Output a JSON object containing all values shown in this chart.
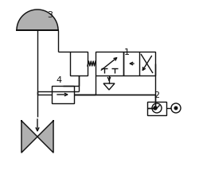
{
  "bg": "#ffffff",
  "lc": "#111111",
  "gc": "#b0b0b0",
  "lw": 1.0,
  "fig_w": 2.5,
  "fig_h": 2.24,
  "dpi": 100,
  "fs": 7
}
